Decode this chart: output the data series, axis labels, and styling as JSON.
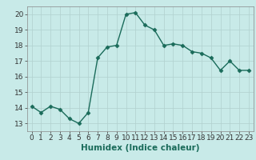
{
  "x": [
    0,
    1,
    2,
    3,
    4,
    5,
    6,
    7,
    8,
    9,
    10,
    11,
    12,
    13,
    14,
    15,
    16,
    17,
    18,
    19,
    20,
    21,
    22,
    23
  ],
  "y": [
    14.1,
    13.7,
    14.1,
    13.9,
    13.3,
    13.0,
    13.7,
    17.2,
    17.9,
    18.0,
    20.0,
    20.1,
    19.3,
    19.0,
    18.0,
    18.1,
    18.0,
    17.6,
    17.5,
    17.2,
    16.4,
    17.0,
    16.4,
    16.4
  ],
  "line_color": "#1a6b5a",
  "marker": "D",
  "marker_size": 2.5,
  "background_color": "#c8eae8",
  "grid_color": "#b0d0ce",
  "xlabel": "Humidex (Indice chaleur)",
  "xlim": [
    -0.5,
    23.5
  ],
  "ylim": [
    12.5,
    20.5
  ],
  "yticks": [
    13,
    14,
    15,
    16,
    17,
    18,
    19,
    20
  ],
  "xticks": [
    0,
    1,
    2,
    3,
    4,
    5,
    6,
    7,
    8,
    9,
    10,
    11,
    12,
    13,
    14,
    15,
    16,
    17,
    18,
    19,
    20,
    21,
    22,
    23
  ],
  "xlabel_fontsize": 7.5,
  "tick_fontsize": 6.5,
  "line_width": 1.0
}
